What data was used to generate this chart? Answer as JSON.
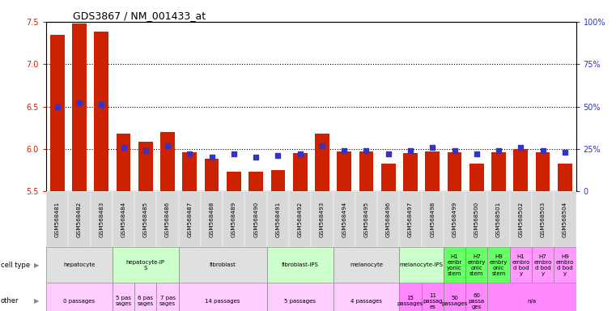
{
  "title": "GDS3867 / NM_001433_at",
  "samples": [
    "GSM568481",
    "GSM568482",
    "GSM568483",
    "GSM568484",
    "GSM568485",
    "GSM568486",
    "GSM568487",
    "GSM568488",
    "GSM568489",
    "GSM568490",
    "GSM568491",
    "GSM568492",
    "GSM568493",
    "GSM568494",
    "GSM568495",
    "GSM568496",
    "GSM568497",
    "GSM568498",
    "GSM568499",
    "GSM568500",
    "GSM568501",
    "GSM568502",
    "GSM568503",
    "GSM568504"
  ],
  "transformed_count": [
    7.35,
    7.48,
    7.38,
    6.18,
    6.08,
    6.2,
    5.96,
    5.88,
    5.73,
    5.73,
    5.75,
    5.95,
    6.18,
    5.97,
    5.97,
    5.83,
    5.95,
    5.97,
    5.96,
    5.83,
    5.96,
    6.0,
    5.96,
    5.83
  ],
  "percentile": [
    50,
    52,
    51,
    26,
    24,
    27,
    22,
    20,
    22,
    20,
    21,
    22,
    27,
    24,
    24,
    22,
    24,
    26,
    24,
    22,
    24,
    26,
    24,
    23
  ],
  "ylim_left": [
    5.5,
    7.5
  ],
  "ylim_right": [
    0,
    100
  ],
  "yticks_left": [
    5.5,
    6.0,
    6.5,
    7.0,
    7.5
  ],
  "yticks_right_vals": [
    0,
    25,
    50,
    75,
    100
  ],
  "yticks_right_labels": [
    "0",
    "25%",
    "50%",
    "75%",
    "100%"
  ],
  "bar_color": "#cc2200",
  "dot_color": "#3333cc",
  "cell_type_groups": [
    {
      "label": "hepatocyte",
      "start": 0,
      "end": 2,
      "color": "#e0e0e0"
    },
    {
      "label": "hepatocyte-iP\nS",
      "start": 3,
      "end": 5,
      "color": "#ccffcc"
    },
    {
      "label": "fibroblast",
      "start": 6,
      "end": 9,
      "color": "#e0e0e0"
    },
    {
      "label": "fibroblast-IPS",
      "start": 10,
      "end": 12,
      "color": "#ccffcc"
    },
    {
      "label": "melanocyte",
      "start": 13,
      "end": 15,
      "color": "#e0e0e0"
    },
    {
      "label": "melanocyte-IPS",
      "start": 16,
      "end": 17,
      "color": "#ccffcc"
    },
    {
      "label": "H1\nembr\nyonic\nstem",
      "start": 18,
      "end": 18,
      "color": "#66ff66"
    },
    {
      "label": "H7\nembry\nonic\nstem",
      "start": 19,
      "end": 19,
      "color": "#66ff66"
    },
    {
      "label": "H9\nembry\nonic\nstem",
      "start": 20,
      "end": 20,
      "color": "#66ff66"
    },
    {
      "label": "H1\nembro\nd bod\ny",
      "start": 21,
      "end": 21,
      "color": "#ff99ff"
    },
    {
      "label": "H7\nembro\nd bod\ny",
      "start": 22,
      "end": 22,
      "color": "#ff99ff"
    },
    {
      "label": "H9\nembro\nd bod\ny",
      "start": 23,
      "end": 23,
      "color": "#ff99ff"
    }
  ],
  "other_groups": [
    {
      "label": "0 passages",
      "start": 0,
      "end": 2,
      "color": "#ffccff"
    },
    {
      "label": "5 pas\nsages",
      "start": 3,
      "end": 3,
      "color": "#ffccff"
    },
    {
      "label": "6 pas\nsages",
      "start": 4,
      "end": 4,
      "color": "#ffccff"
    },
    {
      "label": "7 pas\nsages",
      "start": 5,
      "end": 5,
      "color": "#ffccff"
    },
    {
      "label": "14 passages",
      "start": 6,
      "end": 9,
      "color": "#ffccff"
    },
    {
      "label": "5 passages",
      "start": 10,
      "end": 12,
      "color": "#ffccff"
    },
    {
      "label": "4 passages",
      "start": 13,
      "end": 15,
      "color": "#ffccff"
    },
    {
      "label": "15\npassages",
      "start": 16,
      "end": 16,
      "color": "#ff88ff"
    },
    {
      "label": "11\npassag\nes",
      "start": 17,
      "end": 17,
      "color": "#ff88ff"
    },
    {
      "label": "50\npassages",
      "start": 18,
      "end": 18,
      "color": "#ff88ff"
    },
    {
      "label": "60\npassa\nges",
      "start": 19,
      "end": 19,
      "color": "#ff88ff"
    },
    {
      "label": "n/a",
      "start": 20,
      "end": 23,
      "color": "#ff88ff"
    }
  ],
  "xtick_bg_color": "#d8d8d8"
}
